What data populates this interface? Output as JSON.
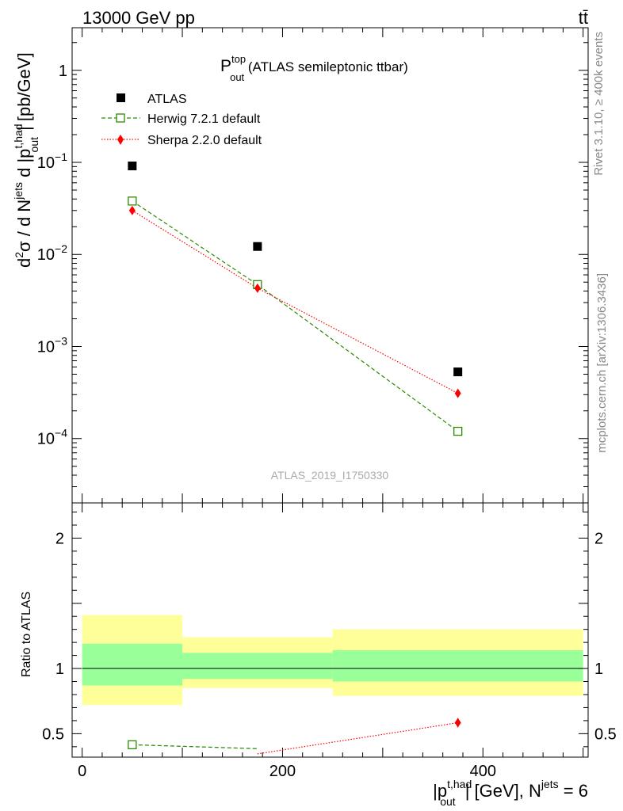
{
  "header": {
    "left": "13000 GeV pp",
    "right": "tt̄"
  },
  "plot_title": {
    "main": "P",
    "sup": "top",
    "sub": "out",
    "rest": " (ATLAS semileptonic ttbar)"
  },
  "side_labels": {
    "rivet": "Rivet 3.1.10, ≥ 400k events",
    "mcplots": "mcplots.cern.ch [arXiv:1306.3436]"
  },
  "watermark": "ATLAS_2019_I1750330",
  "colors": {
    "atlas": "#000000",
    "herwig": "#2a8c00",
    "sherpa": "#ff0000",
    "band_inner": "#99ff99",
    "band_outer": "#ffff99"
  },
  "chart_data": [
    {
      "type": "scatter",
      "name": "main",
      "ylabel": {
        "pre": "d",
        "sup2": "2",
        "sigma": "σ / d N",
        "supjets": "jets",
        "mid": " d |p",
        "suptop": "t,had",
        "subout": "out",
        "post": "| [pb/GeV]"
      },
      "yscale": "log",
      "ylim": [
        2e-05,
        2.9
      ],
      "xlim": [
        -10,
        505
      ],
      "yticks": [
        {
          "v": 1,
          "base": "1",
          "exp": ""
        },
        {
          "v": 0.1,
          "base": "10",
          "exp": "−1"
        },
        {
          "v": 0.01,
          "base": "10",
          "exp": "−2"
        },
        {
          "v": 0.001,
          "base": "10",
          "exp": "−3"
        },
        {
          "v": 0.0001,
          "base": "10",
          "exp": "−4"
        }
      ],
      "legend_position": "top-left",
      "legend": [
        "ATLAS",
        "Herwig 7.2.1 default",
        "Sherpa 2.2.0 default"
      ],
      "series": [
        {
          "name": "ATLAS",
          "marker": "square",
          "line": "none",
          "x": [
            50,
            175,
            375
          ],
          "y": [
            0.0915,
            0.0122,
            0.00053
          ]
        },
        {
          "name": "Herwig 7.2.1 default",
          "marker": "open-square",
          "line": "dashed",
          "x": [
            50,
            175,
            375
          ],
          "y": [
            0.038,
            0.0047,
            0.00012
          ]
        },
        {
          "name": "Sherpa 2.2.0 default",
          "marker": "diamond",
          "line": "dotted",
          "x": [
            50,
            175,
            375
          ],
          "y": [
            0.03,
            0.0043,
            0.00031
          ]
        }
      ]
    },
    {
      "type": "scatter",
      "name": "ratio",
      "ylabel": "Ratio to ATLAS",
      "yscale": "linear",
      "ylim": [
        0.32,
        2.27
      ],
      "xlim": [
        -10,
        505
      ],
      "xlabel": {
        "pre": "|p",
        "sup": "t,had",
        "sub": "out",
        "post": "| [GeV], N",
        "supjets": "jets",
        "end": " = 6"
      },
      "xticks": [
        0,
        200,
        400
      ],
      "yticks": [
        0.5,
        1,
        2
      ],
      "reference_line": 1,
      "bands": [
        {
          "x0": 0,
          "x1": 100,
          "outer": [
            0.72,
            1.41
          ],
          "inner": [
            0.87,
            1.19
          ]
        },
        {
          "x0": 100,
          "x1": 250,
          "outer": [
            0.85,
            1.24
          ],
          "inner": [
            0.92,
            1.12
          ]
        },
        {
          "x0": 250,
          "x1": 500,
          "outer": [
            0.79,
            1.3
          ],
          "inner": [
            0.9,
            1.14
          ]
        }
      ],
      "series": [
        {
          "name": "Herwig 7.2.1 default",
          "x": [
            50,
            175
          ],
          "y": [
            0.415,
            0.385
          ]
        },
        {
          "name": "Sherpa 2.2.0 default",
          "x": [
            175,
            375
          ],
          "y": [
            0.345,
            0.584
          ],
          "yerr": [
            0,
            0.035
          ]
        }
      ]
    }
  ]
}
